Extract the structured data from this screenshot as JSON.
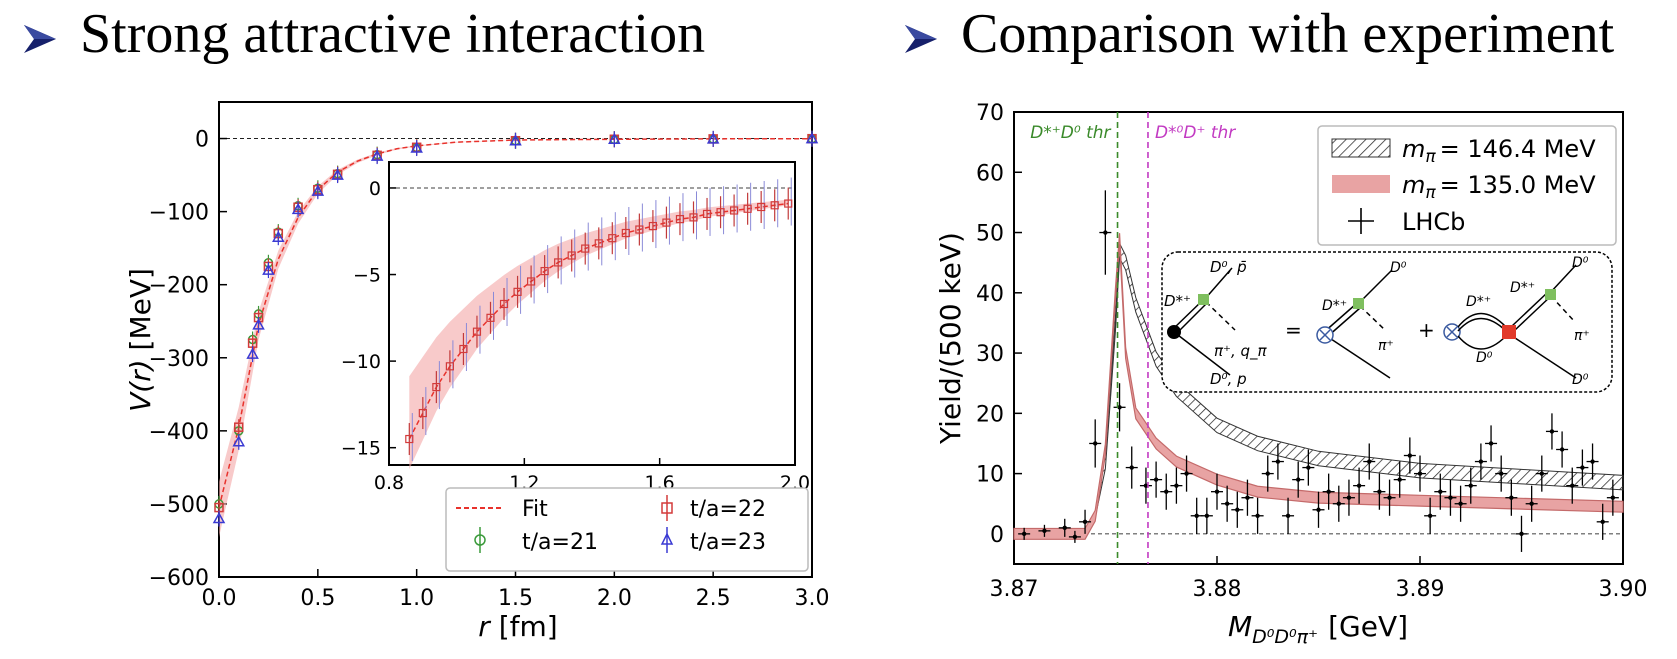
{
  "slide": {
    "left_heading": "Strong attractive interaction",
    "right_heading": "Comparison with experiment"
  },
  "chart_data": [
    {
      "type": "scatter",
      "xlabel_var": "r",
      "xlabel_unit": "[fm]",
      "ylabel_var": "V(r)",
      "ylabel_unit": "[MeV]",
      "xlim": [
        0,
        3.0
      ],
      "ylim": [
        -600,
        50
      ],
      "xticks": [
        "0.0",
        "0.5",
        "1.0",
        "1.5",
        "2.0",
        "2.5",
        "3.0"
      ],
      "yticks": [
        "0",
        "−100",
        "−200",
        "−300",
        "−400",
        "−500",
        "−600"
      ],
      "reference_line_y": 0,
      "legend_position": "lower-right",
      "series": [
        {
          "name": "Fit",
          "style": "dashed-line",
          "color": "#e8322c",
          "x": [
            0.0,
            0.1,
            0.2,
            0.3,
            0.4,
            0.5,
            0.6,
            0.7,
            0.8,
            0.9,
            1.0,
            1.2,
            1.5,
            2.0,
            2.5,
            3.0
          ],
          "y": [
            -505,
            -395,
            -255,
            -165,
            -108,
            -70,
            -46,
            -31,
            -21,
            -14,
            -10,
            -5,
            -2,
            -1,
            -0.4,
            -0.2
          ]
        },
        {
          "name": "t/a=21",
          "marker": "circle",
          "color": "#3a9a3a",
          "x": [
            0.0,
            0.1,
            0.17,
            0.2,
            0.25,
            0.3,
            0.4,
            0.5,
            0.6,
            0.8,
            1.0,
            1.5,
            2.0,
            2.5,
            3.0
          ],
          "y": [
            -500,
            -400,
            -275,
            -240,
            -170,
            -128,
            -92,
            -68,
            -48,
            -22,
            -12,
            -3,
            -1,
            -0.5,
            -0.2
          ]
        },
        {
          "name": "t/a=22",
          "marker": "square",
          "color": "#d33a3a",
          "x": [
            0.0,
            0.1,
            0.17,
            0.2,
            0.25,
            0.3,
            0.4,
            0.5,
            0.6,
            0.8,
            1.0,
            1.5,
            2.0,
            2.5,
            3.0
          ],
          "y": [
            -505,
            -395,
            -280,
            -245,
            -175,
            -130,
            -94,
            -70,
            -49,
            -23,
            -12,
            -3,
            -1,
            -0.5,
            -0.2
          ]
        },
        {
          "name": "t/a=23",
          "marker": "triangle",
          "color": "#3a3ad3",
          "x": [
            0.0,
            0.1,
            0.17,
            0.2,
            0.25,
            0.3,
            0.4,
            0.5,
            0.6,
            0.8,
            1.0,
            1.5,
            2.0,
            2.5,
            3.0
          ],
          "y": [
            -520,
            -415,
            -295,
            -255,
            -180,
            -135,
            -97,
            -72,
            -50,
            -24,
            -13,
            -3,
            -1,
            -0.5,
            -0.2
          ]
        }
      ],
      "inset": {
        "xlim": [
          0.8,
          2.0
        ],
        "ylim": [
          -16,
          1.5
        ],
        "xticks": [
          "0.8",
          "1.2",
          "1.6",
          "2.0"
        ],
        "yticks": [
          "0",
          "−5",
          "−10",
          "−15"
        ],
        "x": [
          0.86,
          0.9,
          0.94,
          0.98,
          1.02,
          1.06,
          1.1,
          1.14,
          1.18,
          1.22,
          1.26,
          1.3,
          1.34,
          1.38,
          1.42,
          1.46,
          1.5,
          1.54,
          1.58,
          1.62,
          1.66,
          1.7,
          1.74,
          1.78,
          1.82,
          1.86,
          1.9,
          1.94,
          1.98
        ],
        "y": [
          -14.5,
          -13.0,
          -11.5,
          -10.3,
          -9.3,
          -8.3,
          -7.5,
          -6.7,
          -6.0,
          -5.4,
          -4.8,
          -4.3,
          -3.9,
          -3.5,
          -3.2,
          -2.9,
          -2.6,
          -2.4,
          -2.2,
          -2.0,
          -1.8,
          -1.7,
          -1.5,
          -1.4,
          -1.3,
          -1.2,
          -1.1,
          -1.0,
          -0.9
        ]
      }
    },
    {
      "type": "line",
      "xlabel_var": "M",
      "xlabel_sub": "D⁰D⁰π⁺",
      "xlabel_unit": "[GeV]",
      "ylabel": "Yield/(500 keV)",
      "xlim": [
        3.87,
        3.9
      ],
      "ylim": [
        -5,
        70
      ],
      "xticks": [
        "3.87",
        "3.88",
        "3.89",
        "3.90"
      ],
      "yticks": [
        "0",
        "10",
        "20",
        "30",
        "40",
        "50",
        "60",
        "70"
      ],
      "reference_line_y": 0,
      "thresholds": [
        {
          "label": "D*⁺D⁰ thr",
          "x": 3.8751,
          "color": "#3a8a2a"
        },
        {
          "label": "D*⁰D⁺ thr",
          "x": 3.8766,
          "color": "#c23ac2"
        }
      ],
      "legend_position": "top-right",
      "series": [
        {
          "name": "m_π = 146.4 MeV",
          "label_var": "m",
          "label_sub": "π",
          "label_val": "= 146.4 MeV",
          "style": "hatched-band",
          "color": "#333333",
          "x": [
            3.87,
            3.8735,
            3.874,
            3.8745,
            3.875,
            3.8752,
            3.8755,
            3.876,
            3.877,
            3.878,
            3.88,
            3.882,
            3.885,
            3.89,
            3.895,
            3.9
          ],
          "y": [
            0,
            0,
            3,
            12,
            35,
            47,
            45,
            38,
            29,
            24,
            18,
            15,
            12.5,
            10.5,
            9.5,
            8.5
          ]
        },
        {
          "name": "m_π = 135.0 MeV",
          "label_var": "m",
          "label_sub": "π",
          "label_val": "= 135.0 MeV",
          "style": "band",
          "color": "#e8a3a3",
          "x": [
            3.87,
            3.8735,
            3.874,
            3.8745,
            3.875,
            3.8752,
            3.8755,
            3.876,
            3.877,
            3.878,
            3.88,
            3.882,
            3.885,
            3.89,
            3.895,
            3.9
          ],
          "y": [
            0,
            0,
            3,
            14,
            40,
            49,
            30,
            20,
            15,
            12,
            9,
            7,
            6,
            5.5,
            5,
            4.5
          ]
        },
        {
          "name": "LHCb",
          "style": "points-with-error",
          "color": "#000000",
          "x": [
            3.8705,
            3.8715,
            3.8725,
            3.873,
            3.8735,
            3.874,
            3.8745,
            3.8752,
            3.8758,
            3.8765,
            3.877,
            3.8775,
            3.878,
            3.8785,
            3.879,
            3.8795,
            3.88,
            3.8805,
            3.881,
            3.8815,
            3.882,
            3.8825,
            3.883,
            3.8835,
            3.884,
            3.8845,
            3.885,
            3.8855,
            3.886,
            3.8865,
            3.887,
            3.8875,
            3.888,
            3.8885,
            3.889,
            3.8895,
            3.89,
            3.8905,
            3.891,
            3.8915,
            3.892,
            3.8925,
            3.893,
            3.8935,
            3.894,
            3.8945,
            3.895,
            3.8955,
            3.896,
            3.8965,
            3.897,
            3.8975,
            3.898,
            3.8985,
            3.899,
            3.8995
          ],
          "y": [
            0,
            0.5,
            1,
            -0.5,
            2,
            15,
            50,
            21,
            11,
            8,
            9,
            7,
            8,
            10,
            3,
            3,
            7,
            5,
            4,
            6,
            3,
            10,
            12,
            3,
            9,
            11,
            4,
            7,
            5,
            6,
            8,
            12,
            7,
            6,
            9,
            13,
            10,
            3,
            7,
            6,
            5,
            8,
            12,
            15,
            10,
            6,
            0,
            5,
            10,
            17,
            14,
            8,
            11,
            12,
            2,
            6
          ],
          "err": [
            1,
            1,
            1.5,
            1,
            2,
            4,
            7,
            4,
            3.5,
            3,
            3,
            3,
            3,
            3,
            3,
            3,
            3,
            3,
            3,
            3,
            3,
            3,
            3,
            3,
            3,
            3,
            3,
            3,
            3,
            3,
            3,
            3,
            3,
            3,
            3,
            3,
            3,
            3,
            3,
            3,
            3,
            3,
            3,
            3,
            3,
            3,
            3,
            3,
            3,
            3,
            3,
            3,
            3,
            3,
            3,
            3
          ]
        }
      ],
      "inset_diagram": {
        "labels": [
          "D⁰, p̄",
          "D*⁺",
          "π⁺, q_π",
          "D⁰, p",
          "D*⁺",
          "π⁺",
          "D⁰",
          "D*⁺",
          "D*⁺",
          "D⁰",
          "π⁺",
          "D⁰",
          "D⁰"
        ],
        "operators": [
          "=",
          "+"
        ]
      }
    }
  ]
}
